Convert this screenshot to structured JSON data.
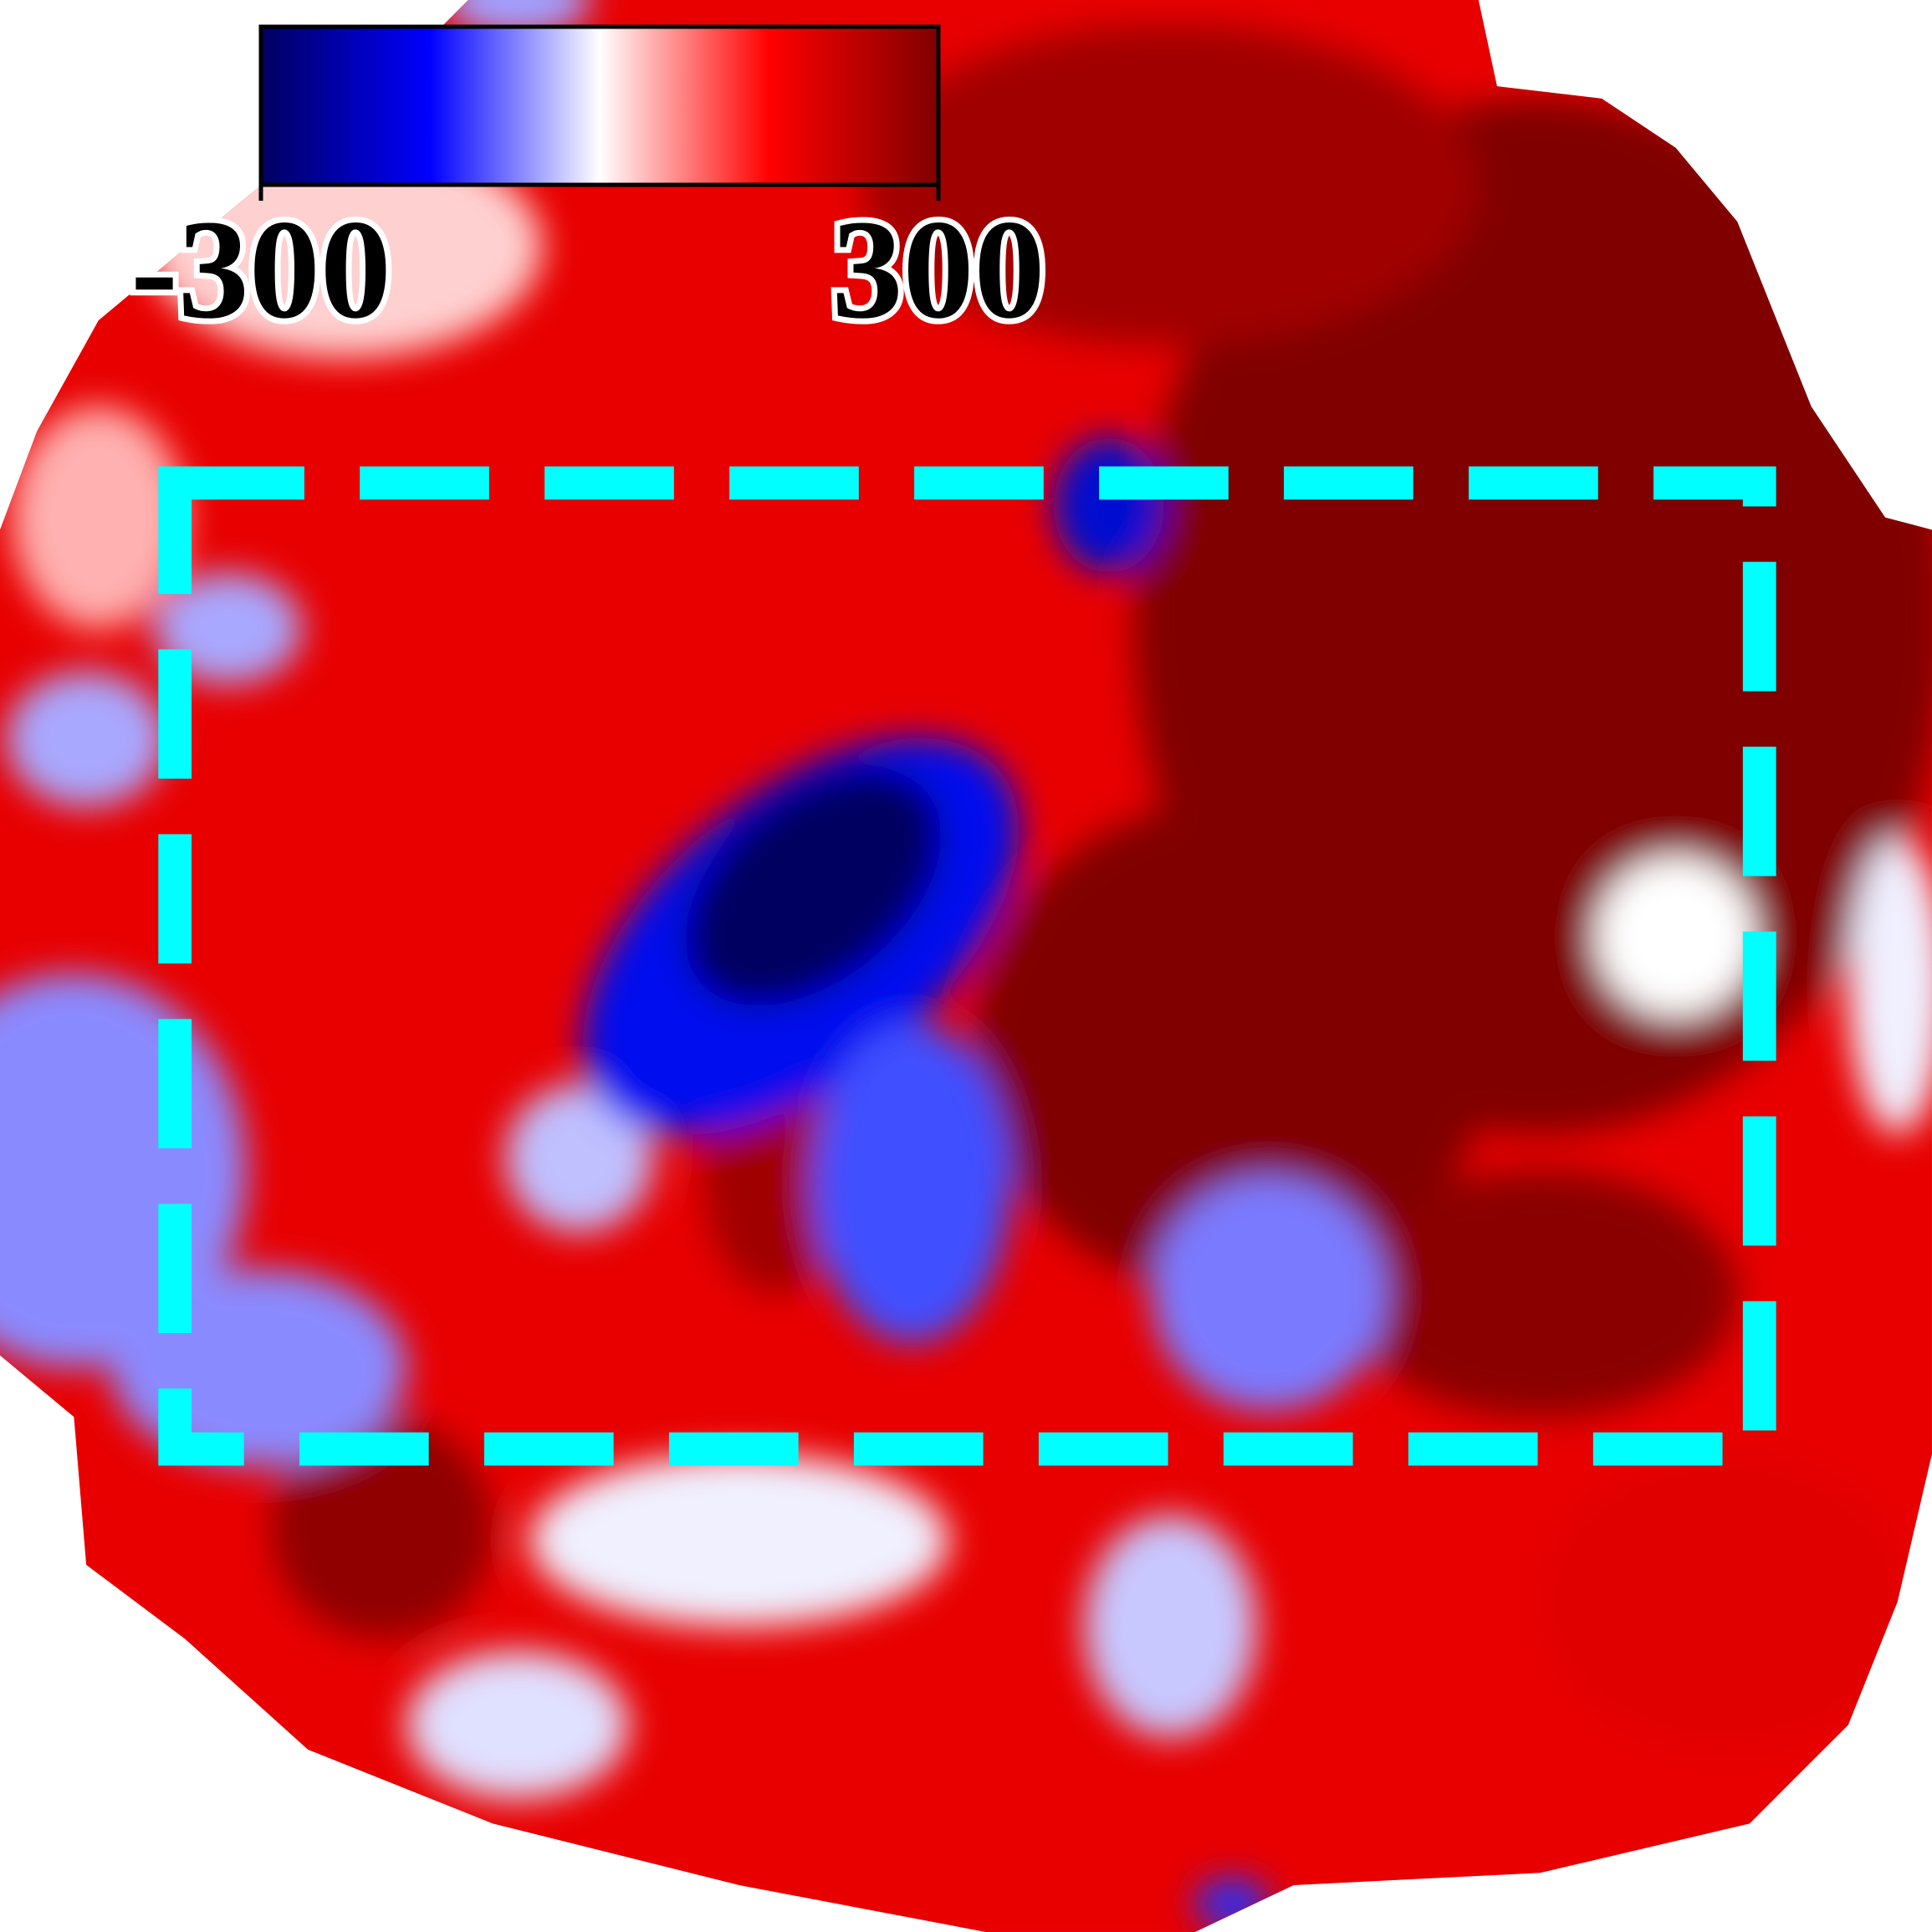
{
  "chart_data": {
    "type": "map",
    "colorbar": {
      "ticks": [
        -300,
        300
      ],
      "colors": [
        "#000060",
        "#0000ff",
        "#ffffff",
        "#ff0000",
        "#800000"
      ]
    },
    "box_color": "#00ffff"
  }
}
